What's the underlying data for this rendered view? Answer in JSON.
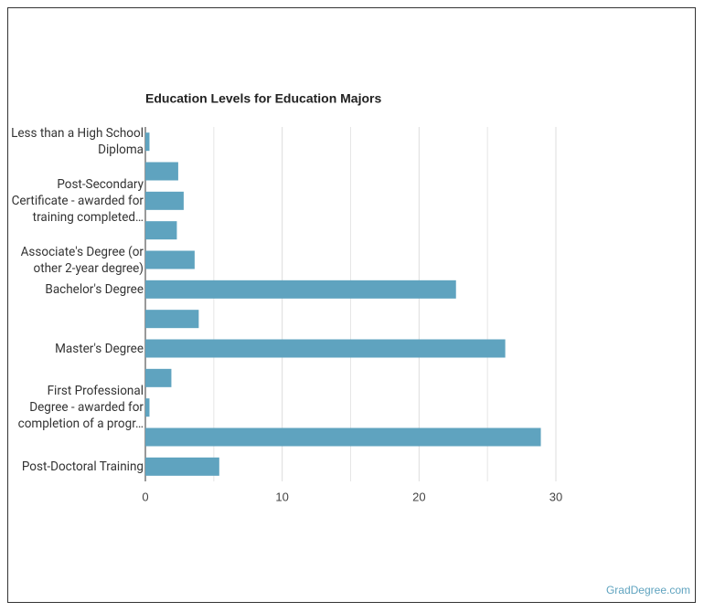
{
  "chart_data": {
    "type": "bar",
    "orientation": "horizontal",
    "title": "Education Levels for Education Majors",
    "categories": [
      "Less than a High School Diploma",
      null,
      "Post-Secondary Certificate - awarded for training completed…",
      null,
      "Associate's Degree (or other 2-year degree)",
      "Bachelor's Degree",
      null,
      "Master's Degree",
      null,
      "First Professional Degree - awarded for completion of a progr…",
      null,
      "Post-Doctoral Training"
    ],
    "values": [
      0.3,
      2.4,
      2.8,
      2.3,
      3.6,
      22.7,
      3.9,
      26.3,
      1.9,
      0.3,
      28.9,
      5.4
    ],
    "color": "#5fa3bf",
    "xlim": [
      0,
      30
    ],
    "xticks": [
      0,
      10,
      20,
      30
    ],
    "minor_xticks": [
      5,
      15,
      25
    ],
    "grid": true,
    "source": "GradDegree.com"
  }
}
